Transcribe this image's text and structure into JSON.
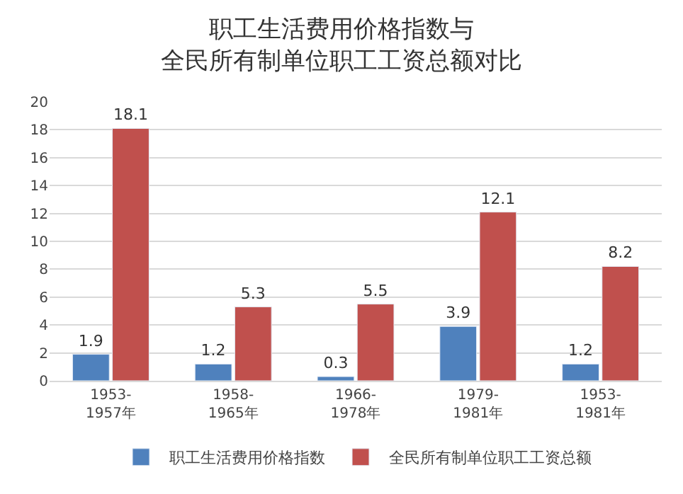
{
  "chart_data": {
    "type": "bar",
    "title": "职工生活费用价格指数与全民所有制单位职工工资总额对比",
    "categories": [
      "1953-\n1957年",
      "1958-\n1965年",
      "1966-\n1978年",
      "1979-\n1981年",
      "1953-\n1981年"
    ],
    "series": [
      {
        "name": "职工生活费用价格指数",
        "color": "#4f81bd",
        "values": [
          1.9,
          1.2,
          0.3,
          3.9,
          1.2
        ]
      },
      {
        "name": "全民所有制单位职工工资总额",
        "color": "#c0504d",
        "values": [
          18.1,
          5.3,
          5.5,
          12.1,
          8.2
        ]
      }
    ],
    "ylim": [
      0,
      20
    ],
    "yticks": [
      0,
      2,
      4,
      6,
      8,
      10,
      12,
      14,
      16,
      18,
      20
    ],
    "grid": "y",
    "legend": "bottom",
    "data_labels": true
  }
}
